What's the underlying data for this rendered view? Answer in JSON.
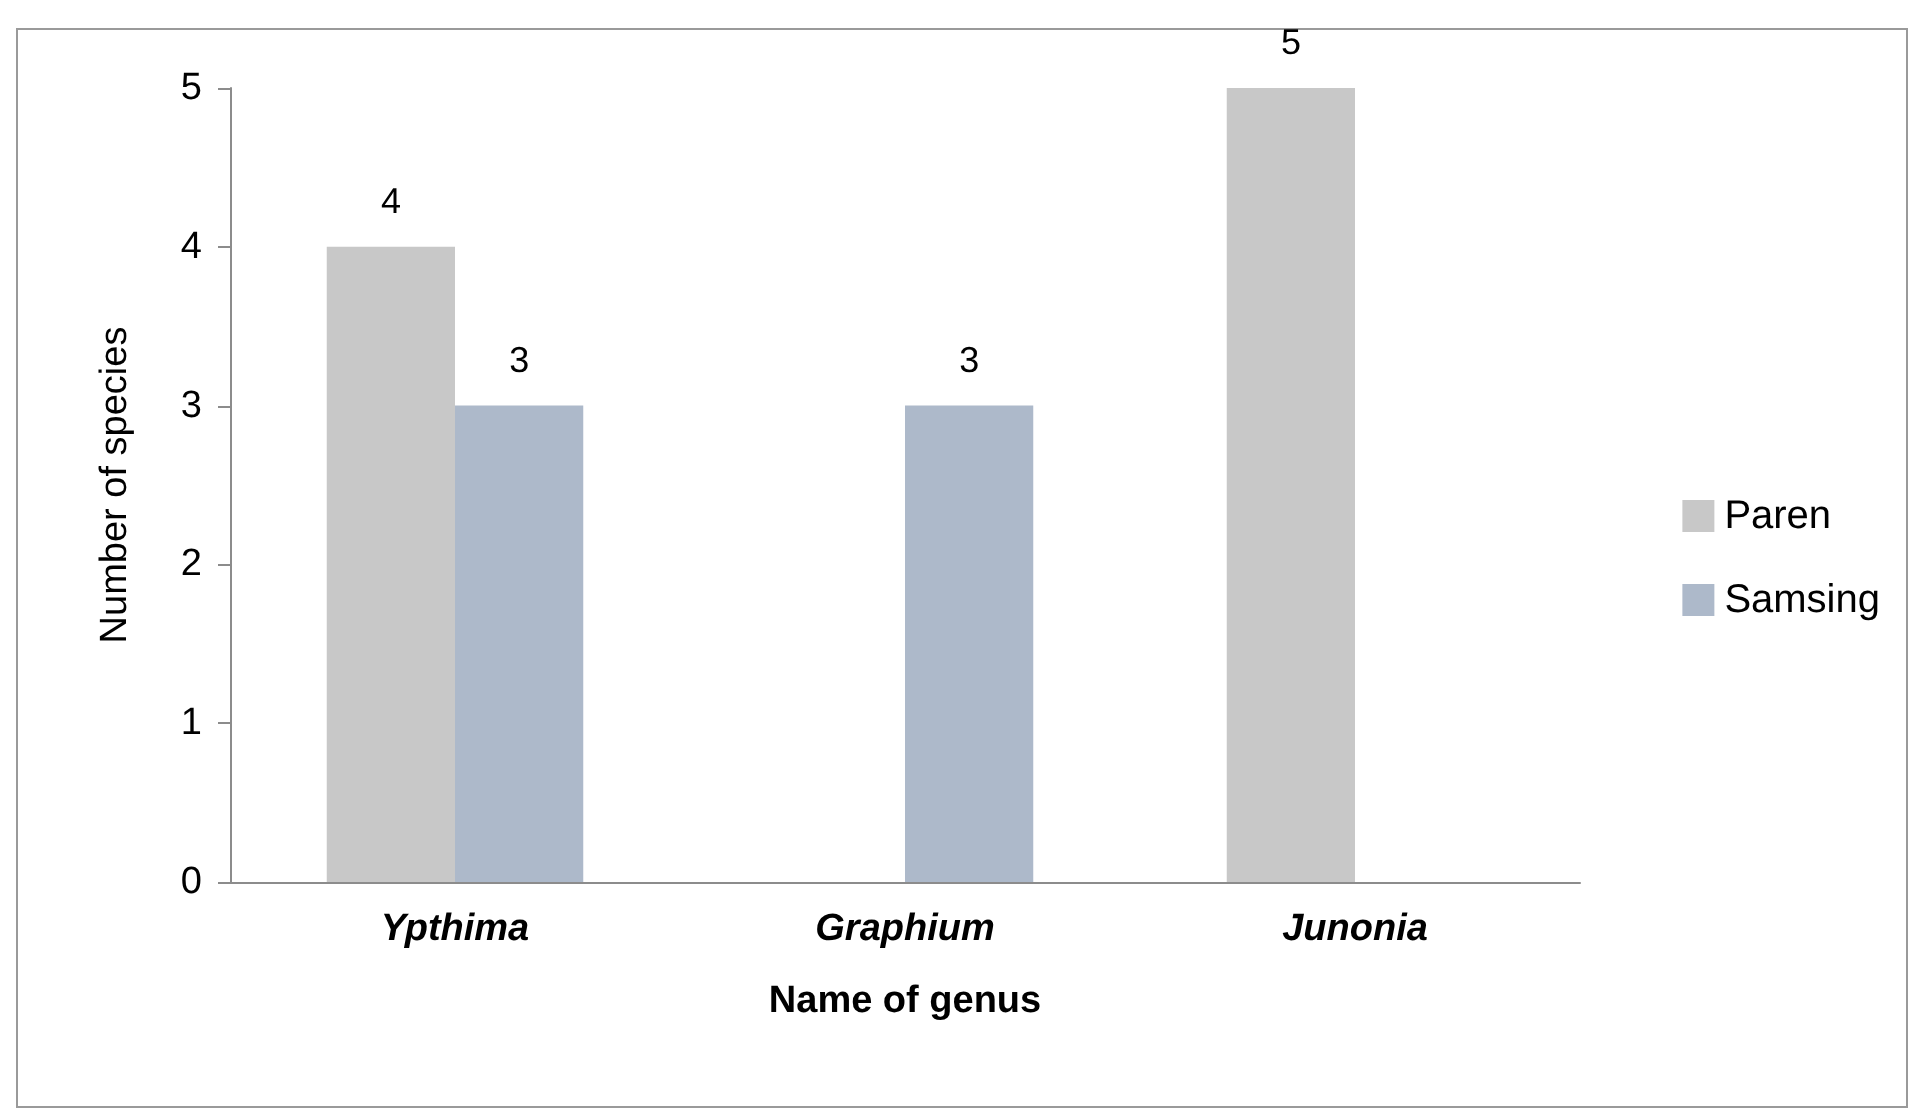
{
  "chart_data": {
    "type": "bar",
    "xlabel": "Name of genus",
    "ylabel": "Number of species",
    "categories": [
      "Ypthima",
      "Graphium",
      "Junonia"
    ],
    "series": [
      {
        "name": "Paren",
        "color": "#c8c8c8",
        "values": [
          4,
          null,
          5
        ]
      },
      {
        "name": "Samsing",
        "color": "#adb9ca",
        "values": [
          3,
          3,
          null
        ]
      }
    ],
    "ylim": [
      0,
      5
    ],
    "yticks": [
      0,
      1,
      2,
      3,
      4,
      5
    ],
    "grid": false,
    "legend": "right",
    "data_labels": true
  }
}
